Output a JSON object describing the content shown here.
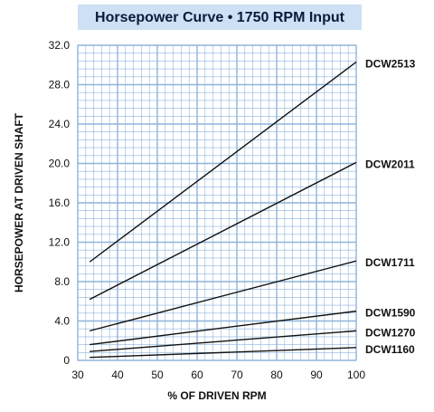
{
  "chart_data": {
    "type": "line",
    "title": "Horsepower Curve • 1750 RPM Input",
    "xlabel": "% OF DRIVEN RPM",
    "ylabel": "HORSEPOWER AT DRIVEN SHAFT",
    "xlim": [
      30,
      100
    ],
    "ylim": [
      0,
      32
    ],
    "x_ticks": [
      30,
      40,
      50,
      60,
      70,
      80,
      90,
      100
    ],
    "y_ticks": [
      "0",
      "4.0",
      "8.0",
      "12.0",
      "16.0",
      "20.0",
      "24.0",
      "28.0",
      "32.0"
    ],
    "y_tick_values": [
      0,
      4,
      8,
      12,
      16,
      20,
      24,
      28,
      32
    ],
    "grid": true,
    "series": [
      {
        "name": "DCW2513",
        "x": [
          33,
          100
        ],
        "y": [
          10.0,
          30.3
        ]
      },
      {
        "name": "DCW2011",
        "x": [
          33,
          100
        ],
        "y": [
          6.2,
          20.1
        ]
      },
      {
        "name": "DCW1711",
        "x": [
          33,
          100
        ],
        "y": [
          3.0,
          10.1
        ]
      },
      {
        "name": "DCW1590",
        "x": [
          33,
          100
        ],
        "y": [
          1.6,
          5.0
        ]
      },
      {
        "name": "DCW1270",
        "x": [
          33,
          100
        ],
        "y": [
          0.9,
          3.0
        ]
      },
      {
        "name": "DCW1160",
        "x": [
          33,
          100
        ],
        "y": [
          0.3,
          1.3
        ]
      }
    ]
  },
  "colors": {
    "title_bg": "#cde0f4",
    "grid": "#8fb4dc",
    "plot_bg": "#ffffff",
    "line": "#111111"
  }
}
